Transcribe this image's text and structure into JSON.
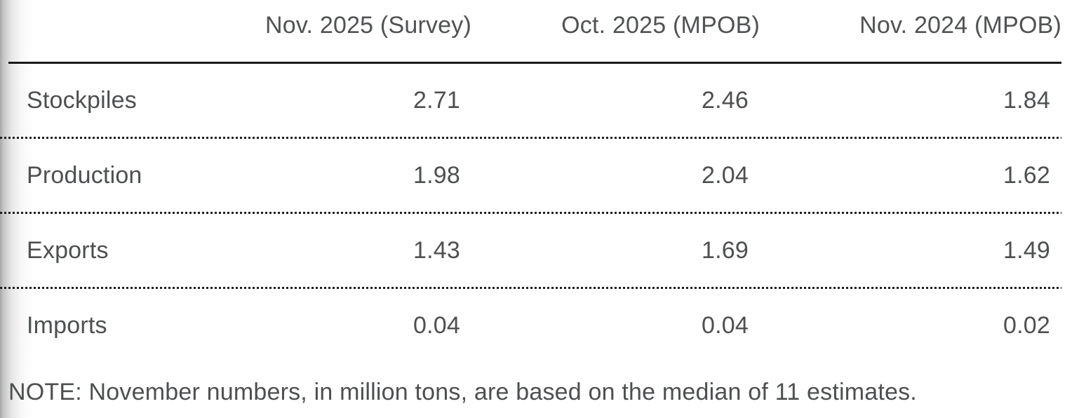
{
  "chart_data": {
    "type": "table",
    "title": "",
    "unit": "million tons",
    "columns": [
      "",
      "Nov. 2025 (Survey)",
      "Oct. 2025 (MPOB)",
      "Nov. 2024 (MPOB)"
    ],
    "rows": [
      {
        "label": "Stockpiles",
        "values": [
          "2.71",
          "2.46",
          "1.84"
        ]
      },
      {
        "label": "Production",
        "values": [
          "1.98",
          "2.04",
          "1.62"
        ]
      },
      {
        "label": "Exports",
        "values": [
          "1.43",
          "1.69",
          "1.49"
        ]
      },
      {
        "label": "Imports",
        "values": [
          "0.04",
          "0.04",
          "0.02"
        ]
      }
    ],
    "note": "NOTE: November numbers, in million tons, are based on the median of 11 estimates.",
    "layout": {
      "header_rule": "solid",
      "row_rule": "dotted",
      "value_alignment": "right",
      "text_color": "#4e4f51",
      "rule_color": "#1a1a1a"
    }
  }
}
